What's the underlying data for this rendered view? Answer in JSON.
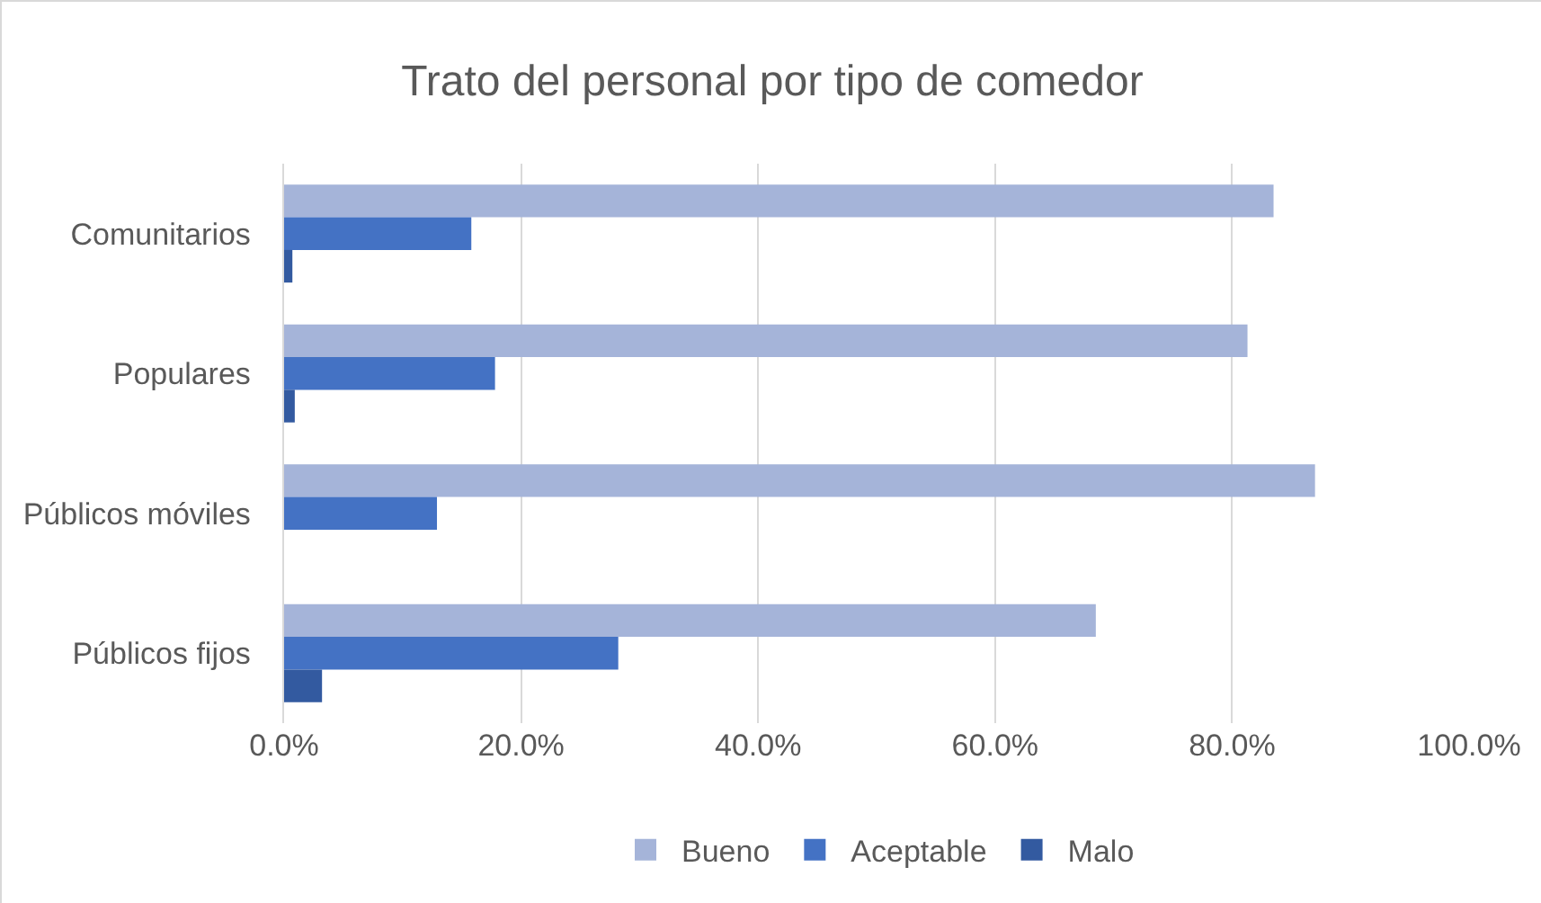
{
  "chart_data": {
    "type": "bar",
    "orientation": "horizontal",
    "title": "Trato del personal por tipo de comedor",
    "categories": [
      "Comunitarios",
      "Populares",
      "Públicos móviles",
      "Públicos fijos"
    ],
    "series": [
      {
        "name": "Bueno",
        "color": "#a5b4d9",
        "values": [
          83.5,
          81.3,
          87.0,
          68.5
        ]
      },
      {
        "name": "Aceptable",
        "color": "#4472c4",
        "values": [
          15.8,
          17.8,
          12.9,
          28.2
        ]
      },
      {
        "name": "Malo",
        "color": "#335aa0",
        "values": [
          0.7,
          0.9,
          0,
          3.2
        ]
      }
    ],
    "xlim": [
      0,
      100
    ],
    "xticks": [
      {
        "value": 0,
        "label": "0.0%"
      },
      {
        "value": 20,
        "label": "20.0%"
      },
      {
        "value": 40,
        "label": "40.0%"
      },
      {
        "value": 60,
        "label": "60.0%"
      },
      {
        "value": 80,
        "label": "80.0%"
      },
      {
        "value": 100,
        "label": "100.0%"
      }
    ],
    "grid": "x",
    "legend": "bottom"
  }
}
